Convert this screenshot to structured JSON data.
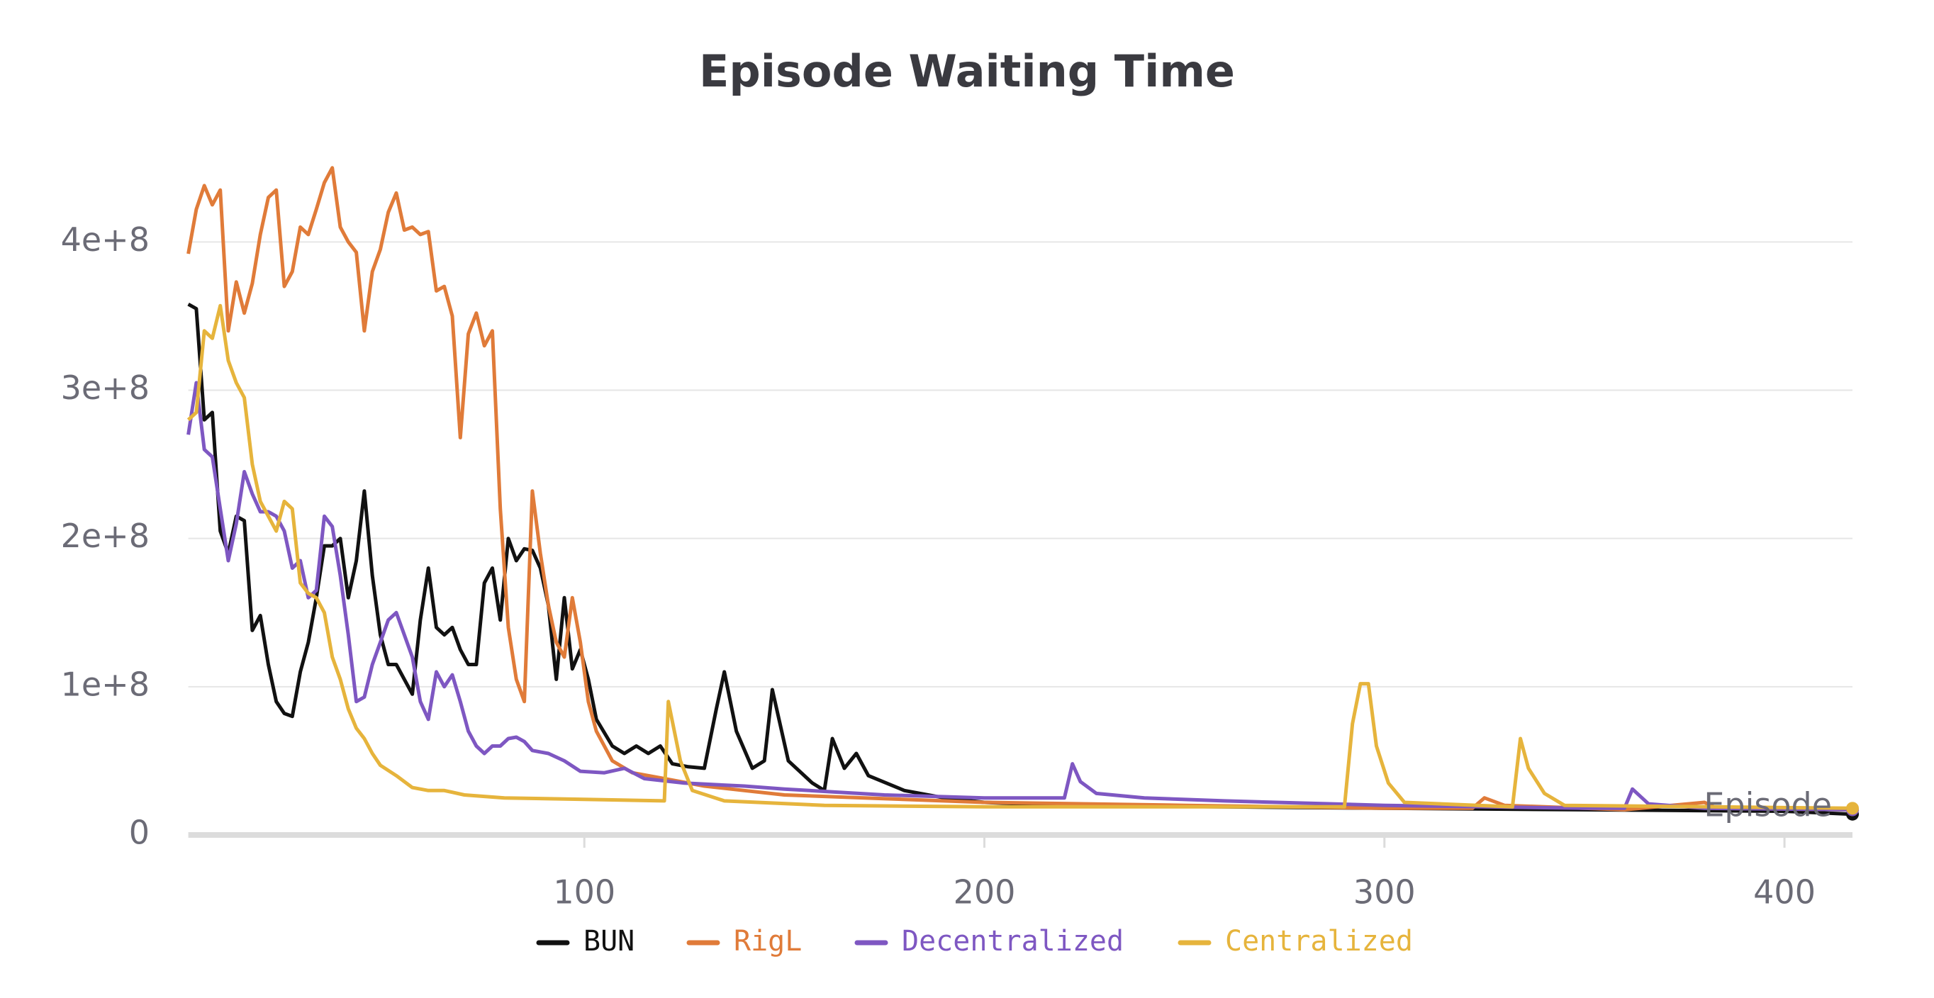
{
  "chart_data": {
    "type": "line",
    "title": "Episode Waiting Time",
    "x_label": "Episode",
    "xlim": [
      1,
      417
    ],
    "xticks": [
      100,
      200,
      300,
      400
    ],
    "ylim": [
      0,
      480000000
    ],
    "yticks": [
      0,
      {
        "value": 100000000,
        "label": "1e+8"
      },
      {
        "value": 200000000,
        "label": "2e+8"
      },
      {
        "value": 300000000,
        "label": "3e+8"
      },
      {
        "value": 400000000,
        "label": "4e+8"
      }
    ],
    "grid": true,
    "legend": "bottom",
    "series": [
      {
        "name": "BUN",
        "color": "#111111",
        "x": [
          1,
          3,
          5,
          7,
          9,
          11,
          13,
          15,
          17,
          19,
          21,
          23,
          25,
          27,
          29,
          31,
          33,
          35,
          37,
          39,
          41,
          43,
          45,
          47,
          49,
          51,
          53,
          55,
          57,
          59,
          61,
          63,
          65,
          67,
          69,
          71,
          73,
          75,
          77,
          79,
          81,
          83,
          85,
          87,
          89,
          91,
          93,
          95,
          97,
          99,
          101,
          103,
          107,
          110,
          113,
          116,
          119,
          122,
          126,
          130,
          133,
          135,
          138,
          142,
          145,
          147,
          151,
          157,
          160,
          162,
          165,
          168,
          171,
          180,
          190,
          200,
          220,
          260,
          300,
          350,
          400,
          417
        ],
        "values": [
          358000000.0,
          355000000.0,
          280000000.0,
          285000000.0,
          205000000.0,
          190000000.0,
          215000000.0,
          212000000.0,
          138000000.0,
          148000000.0,
          115000000.0,
          90000000.0,
          82000000.0,
          80000000.0,
          110000000.0,
          130000000.0,
          160000000.0,
          195000000.0,
          195000000.0,
          200000000.0,
          160000000.0,
          185000000.0,
          232000000.0,
          175000000.0,
          135000000.0,
          115000000.0,
          115000000.0,
          105000000.0,
          95000000.0,
          145000000.0,
          180000000.0,
          140000000.0,
          135000000.0,
          140000000.0,
          125000000.0,
          115000000.0,
          115000000.0,
          170000000.0,
          180000000.0,
          145000000.0,
          200000000.0,
          185000000.0,
          193000000.0,
          192000000.0,
          180000000.0,
          155000000.0,
          105000000.0,
          160000000.0,
          112000000.0,
          125000000.0,
          105000000.0,
          78000000.0,
          60000000.0,
          55000000.0,
          60000000.0,
          55000000.0,
          60000000.0,
          48000000.0,
          46000000.0,
          45000000.0,
          85000000.0,
          110000000.0,
          70000000.0,
          45000000.0,
          50000000.0,
          98000000.0,
          50000000.0,
          35000000.0,
          30000000.0,
          65000000.0,
          45000000.0,
          55000000.0,
          40000000.0,
          30000000.0,
          25000000.0,
          22000000.0,
          20000000.0,
          19000000.0,
          18000000.0,
          17000000.0,
          16000000.0,
          14000000.0
        ]
      },
      {
        "name": "RigL",
        "color": "#e07b39",
        "x": [
          1,
          3,
          5,
          7,
          9,
          11,
          13,
          15,
          17,
          19,
          21,
          23,
          25,
          27,
          29,
          31,
          33,
          35,
          37,
          39,
          41,
          43,
          45,
          47,
          49,
          51,
          53,
          55,
          57,
          59,
          61,
          63,
          65,
          67,
          69,
          71,
          73,
          75,
          77,
          79,
          81,
          83,
          85,
          87,
          89,
          91,
          93,
          95,
          97,
          99,
          101,
          103,
          107,
          112,
          120,
          130,
          140,
          150,
          170,
          200,
          250,
          300,
          322,
          325,
          330,
          360,
          380,
          383,
          417
        ],
        "values": [
          392000000.0,
          422000000.0,
          438000000.0,
          425000000.0,
          435000000.0,
          340000000.0,
          373000000.0,
          352000000.0,
          372000000.0,
          405000000.0,
          430000000.0,
          435000000.0,
          370000000.0,
          380000000.0,
          410000000.0,
          405000000.0,
          422000000.0,
          440000000.0,
          450000000.0,
          410000000.0,
          400000000.0,
          393000000.0,
          340000000.0,
          380000000.0,
          395000000.0,
          420000000.0,
          433000000.0,
          408000000.0,
          410000000.0,
          405000000.0,
          407000000.0,
          367000000.0,
          370000000.0,
          350000000.0,
          268000000.0,
          338000000.0,
          352000000.0,
          330000000.0,
          340000000.0,
          220000000.0,
          140000000.0,
          105000000.0,
          90000000.0,
          232000000.0,
          190000000.0,
          155000000.0,
          130000000.0,
          120000000.0,
          160000000.0,
          130000000.0,
          90000000.0,
          70000000.0,
          50000000.0,
          42000000.0,
          38000000.0,
          33000000.0,
          30000000.0,
          27000000.0,
          25000000.0,
          22000000.0,
          20000000.0,
          18000000.0,
          18000000.0,
          25000000.0,
          20000000.0,
          17000000.0,
          22000000.0,
          18000000.0,
          17000000.0
        ]
      },
      {
        "name": "Decentralized",
        "color": "#7e57c2",
        "x": [
          1,
          3,
          5,
          7,
          9,
          11,
          13,
          15,
          17,
          19,
          21,
          23,
          25,
          27,
          29,
          31,
          33,
          35,
          37,
          39,
          41,
          43,
          45,
          47,
          49,
          51,
          53,
          55,
          57,
          59,
          61,
          63,
          65,
          67,
          69,
          71,
          73,
          75,
          77,
          79,
          81,
          83,
          85,
          87,
          91,
          95,
          99,
          105,
          110,
          115,
          125,
          140,
          150,
          175,
          200,
          220,
          222,
          224,
          228,
          240,
          260,
          300,
          350,
          360,
          362,
          366,
          380,
          417
        ],
        "values": [
          270000000.0,
          305000000.0,
          260000000.0,
          255000000.0,
          220000000.0,
          185000000.0,
          210000000.0,
          245000000.0,
          230000000.0,
          218000000.0,
          218000000.0,
          215000000.0,
          205000000.0,
          180000000.0,
          185000000.0,
          160000000.0,
          165000000.0,
          215000000.0,
          208000000.0,
          175000000.0,
          135000000.0,
          90000000.0,
          93000000.0,
          115000000.0,
          130000000.0,
          145000000.0,
          150000000.0,
          135000000.0,
          120000000.0,
          90000000.0,
          78000000.0,
          110000000.0,
          100000000.0,
          108000000.0,
          90000000.0,
          70000000.0,
          60000000.0,
          55000000.0,
          60000000.0,
          60000000.0,
          65000000.0,
          66000000.0,
          63000000.0,
          57000000.0,
          55000000.0,
          50000000.0,
          43000000.0,
          42000000.0,
          45000000.0,
          38000000.0,
          35000000.0,
          33000000.0,
          31000000.0,
          27000000.0,
          25000000.0,
          25000000.0,
          48000000.0,
          36000000.0,
          28000000.0,
          25000000.0,
          23000000.0,
          20000000.0,
          18000000.0,
          18000000.0,
          31000000.0,
          21000000.0,
          18000000.0,
          17000000.0
        ]
      },
      {
        "name": "Centralized",
        "color": "#e6b43c",
        "x": [
          1,
          3,
          5,
          7,
          9,
          11,
          13,
          15,
          17,
          19,
          21,
          23,
          25,
          27,
          29,
          31,
          33,
          35,
          37,
          39,
          41,
          43,
          45,
          47,
          49,
          53,
          57,
          61,
          65,
          70,
          80,
          100,
          120,
          121,
          124,
          127,
          135,
          160,
          200,
          290,
          292,
          294,
          296,
          298,
          301,
          305,
          332,
          334,
          336,
          340,
          345,
          417
        ],
        "values": [
          280000000.0,
          285000000.0,
          340000000.0,
          335000000.0,
          357000000.0,
          320000000.0,
          305000000.0,
          295000000.0,
          250000000.0,
          225000000.0,
          215000000.0,
          205000000.0,
          225000000.0,
          220000000.0,
          170000000.0,
          163000000.0,
          160000000.0,
          150000000.0,
          120000000.0,
          105000000.0,
          85000000.0,
          72000000.0,
          65000000.0,
          55000000.0,
          47000000.0,
          40000000.0,
          32000000.0,
          30000000.0,
          30000000.0,
          27000000.0,
          25000000.0,
          24000000.0,
          23000000.0,
          90000000.0,
          50000000.0,
          30000000.0,
          23000000.0,
          20000000.0,
          19000000.0,
          19000000.0,
          75000000.0,
          102000000.0,
          102000000.0,
          60000000.0,
          35000000.0,
          22000000.0,
          19000000.0,
          65000000.0,
          45000000.0,
          28000000.0,
          20000000.0,
          18000000.0
        ]
      }
    ]
  }
}
